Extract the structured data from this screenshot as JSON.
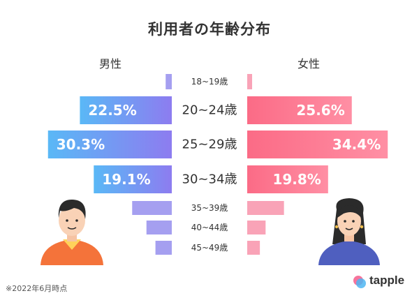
{
  "title": "利用者の年齢分布",
  "labels": {
    "male": "男性",
    "female": "女性"
  },
  "footnote": "※2022年6月時点",
  "brand": "tapple",
  "colors": {
    "male_start": "#5ab8f6",
    "male_end": "#8d7cf0",
    "female_start": "#fb6b86",
    "female_end": "#ff8fa4",
    "male_small": "#a59ff0",
    "female_small": "#f9a3b7"
  },
  "chart_data": {
    "type": "bar",
    "title": "利用者の年齢分布",
    "categories": [
      "18~19歳",
      "20~24歳",
      "25~29歳",
      "30~34歳",
      "35~39歳",
      "40~44歳",
      "45~49歳"
    ],
    "series": [
      {
        "name": "男性",
        "values": [
          1.5,
          22.5,
          30.3,
          19.1,
          9.7,
          6.2,
          4.0
        ],
        "labels": [
          "",
          "22.5%",
          "30.3%",
          "19.1%",
          "",
          "",
          ""
        ]
      },
      {
        "name": "女性",
        "values": [
          1.2,
          25.6,
          34.4,
          19.8,
          9.0,
          4.5,
          3.1
        ],
        "labels": [
          "",
          "25.6%",
          "34.4%",
          "19.8%",
          "",
          "",
          ""
        ]
      }
    ]
  }
}
